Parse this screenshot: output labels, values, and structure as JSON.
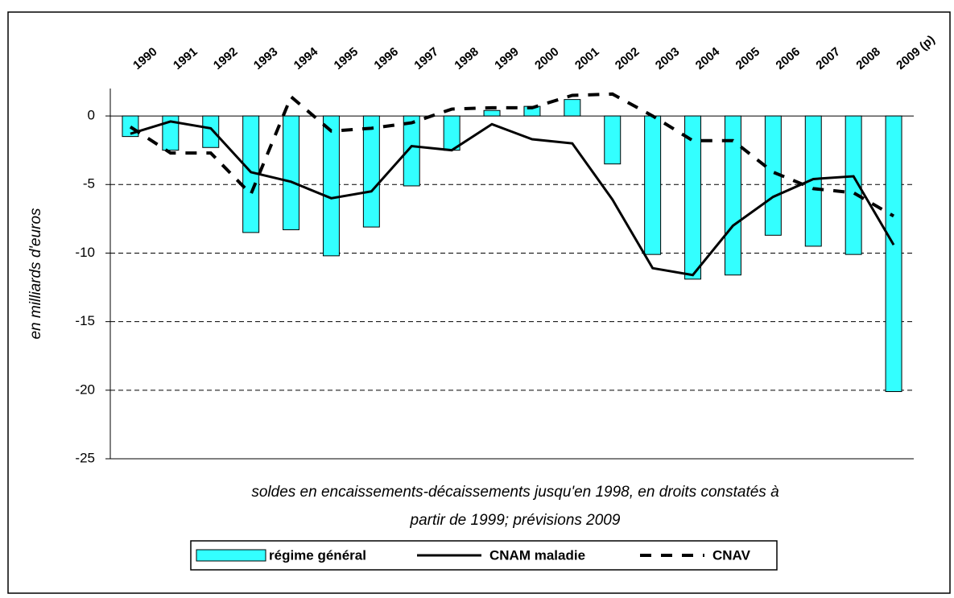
{
  "chart_data": {
    "type": "bar-line",
    "y_label": "en milliards d'euros",
    "note": [
      "soldes en encaissements-décaissements jusqu'en 1998, en droits constatés à",
      "partir de 1999; prévisions 2009"
    ],
    "categories": [
      "1990",
      "1991",
      "1992",
      "1993",
      "1994",
      "1995",
      "1996",
      "1997",
      "1998",
      "1999",
      "2000",
      "2001",
      "2002",
      "2003",
      "2004",
      "2005",
      "2006",
      "2007",
      "2008",
      "2009 (p)"
    ],
    "series": [
      {
        "name": "régime général",
        "type": "bar",
        "color": "#33ffff",
        "values": [
          -1.5,
          -2.5,
          -2.3,
          -8.5,
          -8.3,
          -10.2,
          -8.1,
          -5.1,
          -2.5,
          0.4,
          0.7,
          1.2,
          -3.5,
          -10.1,
          -11.9,
          -11.6,
          -8.7,
          -9.5,
          -10.1,
          -20.1
        ]
      },
      {
        "name": "CNAM maladie",
        "type": "line",
        "color": "#000000",
        "values": [
          -1.3,
          -0.4,
          -0.9,
          -4.1,
          -4.8,
          -6.0,
          -5.5,
          -2.2,
          -2.5,
          -0.6,
          -1.7,
          -2.0,
          -6.1,
          -11.1,
          -11.6,
          -8.0,
          -5.9,
          -4.6,
          -4.4,
          -9.4
        ]
      },
      {
        "name": "CNAV",
        "type": "dashed-line",
        "color": "#000000",
        "values": [
          -0.8,
          -2.7,
          -2.7,
          -5.7,
          1.4,
          -1.1,
          -0.9,
          -0.5,
          0.5,
          0.6,
          0.6,
          1.5,
          1.6,
          0.0,
          -1.8,
          -1.8,
          -4.1,
          -5.3,
          -5.6,
          -7.3
        ]
      }
    ],
    "ylim": [
      -25,
      2
    ],
    "yticks": [
      -25,
      -20,
      -15,
      -10,
      -5,
      0
    ],
    "grid": true
  }
}
